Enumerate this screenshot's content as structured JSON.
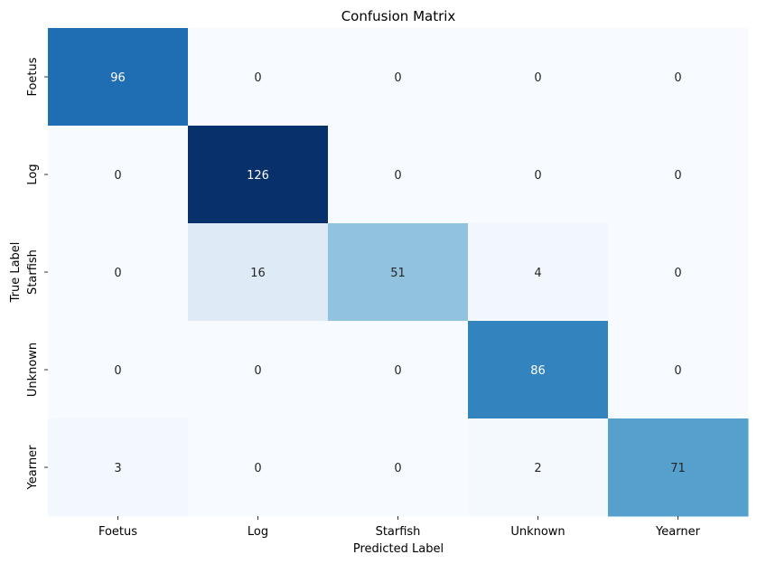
{
  "chart_data": {
    "type": "heatmap",
    "title": "Confusion Matrix",
    "xlabel": "Predicted Label",
    "ylabel": "True Label",
    "x_categories": [
      "Foetus",
      "Log",
      "Starfish",
      "Unknown",
      "Yearner"
    ],
    "y_categories": [
      "Foetus",
      "Log",
      "Starfish",
      "Unknown",
      "Yearner"
    ],
    "matrix": [
      [
        96,
        0,
        0,
        0,
        0
      ],
      [
        0,
        126,
        0,
        0,
        0
      ],
      [
        0,
        16,
        51,
        4,
        0
      ],
      [
        0,
        0,
        0,
        86,
        0
      ],
      [
        3,
        0,
        0,
        2,
        71
      ]
    ],
    "colormap": "Blues",
    "vmin": 0,
    "vmax": 126,
    "colorbar": false,
    "grid": false
  }
}
